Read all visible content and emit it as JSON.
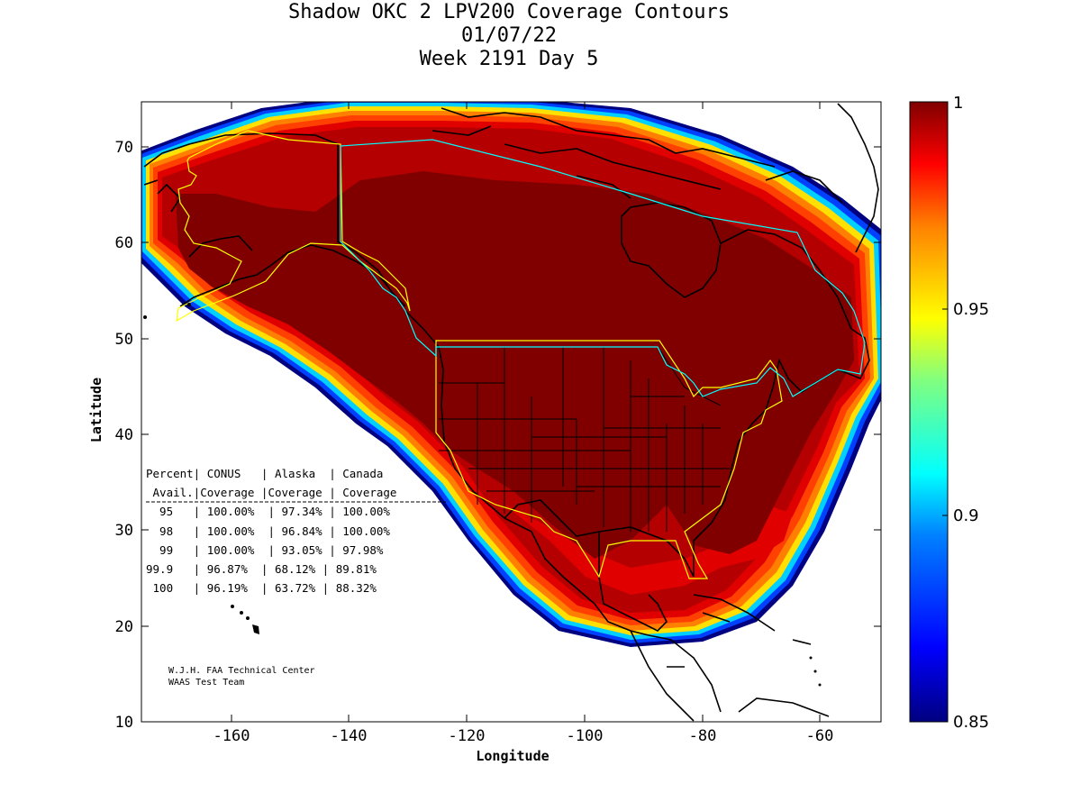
{
  "title": {
    "line1": "Shadow OKC 2 LPV200 Coverage Contours",
    "line2": "01/07/22",
    "line3": "Week 2191 Day 5"
  },
  "axes": {
    "xlabel": "Longitude",
    "ylabel": "Latitude",
    "x_ticks": [
      "-160",
      "-140",
      "-120",
      "-100",
      "-80",
      "-60"
    ],
    "y_ticks": [
      "10",
      "20",
      "30",
      "40",
      "50",
      "60",
      "70"
    ],
    "xlim": [
      -175,
      -50
    ],
    "ylim": [
      10,
      75
    ]
  },
  "colorbar": {
    "labels": [
      "1",
      "0.95",
      "0.9",
      "0.85"
    ],
    "range": [
      0.85,
      1.0
    ]
  },
  "coverage_table": {
    "header1": "Percent| CONUS   | Alaska  | Canada",
    "header2": " Avail.|Coverage |Coverage | Coverage",
    "rows": [
      "  95   | 100.00%  | 97.34% | 100.00%",
      "  98   | 100.00%  | 96.84% | 100.00%",
      "  99   | 100.00%  | 93.05% | 97.98%",
      "99.9   | 96.87%  | 68.12% | 89.81%",
      " 100   | 96.19%  | 63.72% | 88.32%"
    ]
  },
  "credit": {
    "line1": "W.J.H. FAA Technical Center",
    "line2": "WAAS Test Team"
  },
  "colors": {
    "core": "#800000",
    "dark_red": "#b40000",
    "red": "#e00000",
    "orange_red": "#ff4000",
    "orange": "#ff8000",
    "yellow": "#ffe000",
    "cyan": "#00d0ff",
    "blue": "#0040ff",
    "navy": "#000080",
    "region_outline_yellow": "#ffff00",
    "region_outline_cyan": "#00ffff"
  }
}
